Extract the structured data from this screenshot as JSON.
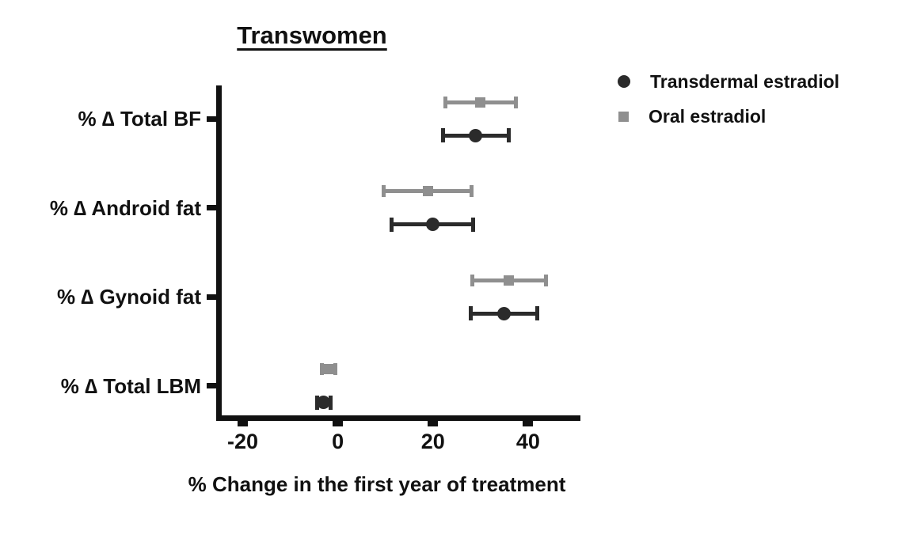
{
  "title": "Transwomen",
  "xlabel": "% Change in the first year of treatment",
  "colors": {
    "axis": "#111111",
    "transdermal": "#2b2b2b",
    "oral": "#8f8f8f"
  },
  "legend": [
    {
      "label": "Transdermal estradiol",
      "marker": "circle",
      "color": "#2b2b2b"
    },
    {
      "label": "Oral estradiol",
      "marker": "square",
      "color": "#8f8f8f"
    }
  ],
  "chart_data": {
    "type": "scatter",
    "subtype": "dot-plot-with-error-bars",
    "title": "Transwomen",
    "xlabel": "% Change in the first year of treatment",
    "categories": [
      "% ∆ Total BF",
      "% ∆ Android fat",
      "% ∆ Gynoid fat",
      "% ∆ Total LBM"
    ],
    "x_ticks": [
      -20,
      0,
      20,
      40
    ],
    "xlim": [
      -25,
      51
    ],
    "grid": false,
    "legend_position": "top-right",
    "series": [
      {
        "name": "Oral estradiol",
        "marker": "square",
        "color": "#8f8f8f",
        "points": [
          {
            "category": "% ∆ Total BF",
            "value": 30,
            "low": 22.5,
            "high": 37.5
          },
          {
            "category": "% ∆ Android fat",
            "value": 19,
            "low": 9.5,
            "high": 28.2
          },
          {
            "category": "% ∆ Gynoid fat",
            "value": 36,
            "low": 28.2,
            "high": 43.8
          },
          {
            "category": "% ∆ Total LBM",
            "value": -2,
            "low": -3.5,
            "high": -0.5
          }
        ]
      },
      {
        "name": "Transdermal estradiol",
        "marker": "circle",
        "color": "#2b2b2b",
        "points": [
          {
            "category": "% ∆ Total BF",
            "value": 29,
            "low": 22,
            "high": 36
          },
          {
            "category": "% ∆ Android fat",
            "value": 20,
            "low": 11.2,
            "high": 28.5
          },
          {
            "category": "% ∆ Gynoid fat",
            "value": 35,
            "low": 27.8,
            "high": 42
          },
          {
            "category": "% ∆ Total LBM",
            "value": -3,
            "low": -4.5,
            "high": -1.5
          }
        ]
      }
    ]
  }
}
